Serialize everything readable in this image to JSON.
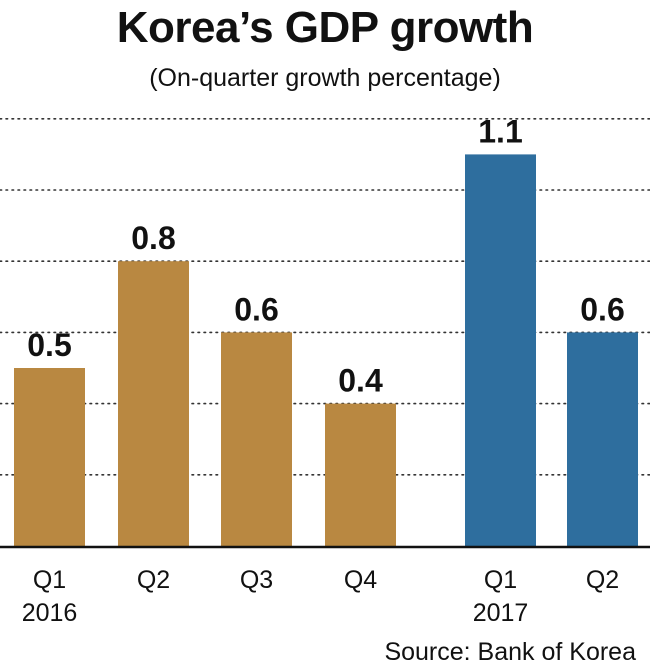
{
  "title": "Korea’s GDP growth",
  "subtitle": "(On-quarter growth percentage)",
  "source": "Source: Bank of Korea",
  "chart_data": {
    "type": "bar",
    "title": "Korea’s GDP growth",
    "subtitle": "(On-quarter growth percentage)",
    "categories": [
      {
        "quarter": "Q1",
        "year": "2016"
      },
      {
        "quarter": "Q2",
        "year": ""
      },
      {
        "quarter": "Q3",
        "year": ""
      },
      {
        "quarter": "Q4",
        "year": ""
      },
      {
        "quarter": "Q1",
        "year": "2017"
      },
      {
        "quarter": "Q2",
        "year": ""
      }
    ],
    "values": [
      0.5,
      0.8,
      0.6,
      0.4,
      1.1,
      0.6
    ],
    "value_labels": [
      "0.5",
      "0.8",
      "0.6",
      "0.4",
      "1.1",
      "0.6"
    ],
    "bar_colors": [
      "#B98841",
      "#B98841",
      "#B98841",
      "#B98841",
      "#2E6E9E",
      "#2E6E9E"
    ],
    "ylim": [
      0,
      1.2
    ],
    "grid": "dotted horizontal every 0.2",
    "legend": "none",
    "xlabel": "",
    "ylabel": ""
  }
}
